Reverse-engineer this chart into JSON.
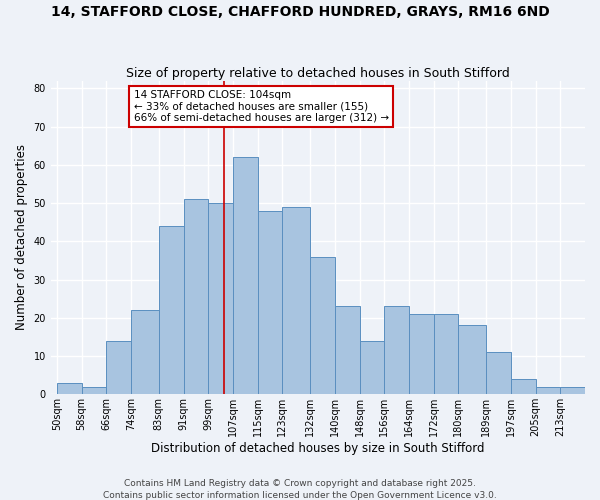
{
  "title": "14, STAFFORD CLOSE, CHAFFORD HUNDRED, GRAYS, RM16 6ND",
  "subtitle": "Size of property relative to detached houses in South Stifford",
  "xlabel": "Distribution of detached houses by size in South Stifford",
  "ylabel": "Number of detached properties",
  "footer1": "Contains HM Land Registry data © Crown copyright and database right 2025.",
  "footer2": "Contains public sector information licensed under the Open Government Licence v3.0.",
  "annotation_title": "14 STAFFORD CLOSE: 104sqm",
  "annotation_line1": "← 33% of detached houses are smaller (155)",
  "annotation_line2": "66% of semi-detached houses are larger (312) →",
  "property_size": 104,
  "bar_edges": [
    50,
    58,
    66,
    74,
    83,
    91,
    99,
    107,
    115,
    123,
    132,
    140,
    148,
    156,
    164,
    172,
    180,
    189,
    197,
    205,
    213
  ],
  "bar_heights": [
    3,
    2,
    14,
    22,
    44,
    51,
    50,
    62,
    48,
    49,
    36,
    23,
    14,
    23,
    21,
    21,
    18,
    11,
    4,
    2,
    2
  ],
  "ylim": [
    0,
    82
  ],
  "yticks": [
    0,
    10,
    20,
    30,
    40,
    50,
    60,
    70,
    80
  ],
  "bar_color": "#a8c4e0",
  "bar_edge_color": "#5a8fc0",
  "vline_color": "#cc0000",
  "annotation_box_color": "#cc0000",
  "background_color": "#eef2f8",
  "grid_color": "#ffffff",
  "title_fontsize": 10,
  "subtitle_fontsize": 9,
  "axis_label_fontsize": 8.5,
  "tick_fontsize": 7,
  "footer_fontsize": 6.5,
  "annotation_fontsize": 7.5
}
